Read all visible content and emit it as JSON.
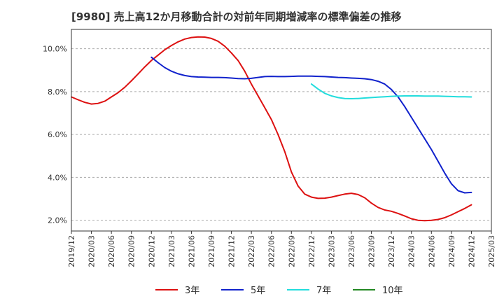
{
  "chart_data": {
    "type": "line",
    "title": "[9980]  売上高12か月移動合計の対前年同期増減率の標準偏差の推移",
    "xlabel": "",
    "ylabel": "",
    "x_ticks": [
      "2019/12",
      "2020/03",
      "2020/06",
      "2020/09",
      "2020/12",
      "2021/03",
      "2021/06",
      "2021/09",
      "2021/12",
      "2022/03",
      "2022/06",
      "2022/09",
      "2022/12",
      "2023/03",
      "2023/06",
      "2023/09",
      "2023/12",
      "2024/03",
      "2024/06",
      "2024/09",
      "2024/12",
      "2025/03"
    ],
    "y_ticks": [
      2.0,
      4.0,
      6.0,
      8.0,
      10.0
    ],
    "y_tick_labels": [
      "2.0%",
      "4.0%",
      "6.0%",
      "8.0%",
      "10.0%"
    ],
    "ylim": [
      1.5,
      10.9
    ],
    "grid": "horizontal dashed",
    "legend_position": "bottom",
    "series": [
      {
        "name": "3年",
        "color": "#dd1111",
        "x": [
          "2019/12",
          "2020/01",
          "2020/02",
          "2020/03",
          "2020/04",
          "2020/05",
          "2020/06",
          "2020/07",
          "2020/08",
          "2020/09",
          "2020/10",
          "2020/11",
          "2020/12",
          "2021/01",
          "2021/02",
          "2021/03",
          "2021/04",
          "2021/05",
          "2021/06",
          "2021/07",
          "2021/08",
          "2021/09",
          "2021/10",
          "2021/11",
          "2021/12",
          "2022/01",
          "2022/02",
          "2022/03",
          "2022/04",
          "2022/05",
          "2022/06",
          "2022/07",
          "2022/08",
          "2022/09",
          "2022/10",
          "2022/11",
          "2022/12",
          "2023/01",
          "2023/02",
          "2023/03",
          "2023/04",
          "2023/05",
          "2023/06",
          "2023/07",
          "2023/08",
          "2023/09",
          "2023/10",
          "2023/11",
          "2023/12",
          "2024/01",
          "2024/02",
          "2024/03",
          "2024/04",
          "2024/05",
          "2024/06",
          "2024/07",
          "2024/08",
          "2024/09",
          "2024/10",
          "2024/11",
          "2024/12"
        ],
        "values": [
          7.75,
          7.62,
          7.5,
          7.42,
          7.45,
          7.55,
          7.75,
          7.95,
          8.2,
          8.5,
          8.82,
          9.15,
          9.45,
          9.7,
          9.95,
          10.15,
          10.32,
          10.45,
          10.52,
          10.55,
          10.54,
          10.48,
          10.35,
          10.12,
          9.8,
          9.45,
          8.95,
          8.35,
          7.8,
          7.25,
          6.7,
          6.0,
          5.2,
          4.25,
          3.6,
          3.22,
          3.08,
          3.02,
          3.03,
          3.08,
          3.15,
          3.22,
          3.26,
          3.2,
          3.05,
          2.8,
          2.6,
          2.48,
          2.42,
          2.32,
          2.2,
          2.07,
          2.0,
          1.98,
          2.0,
          2.04,
          2.12,
          2.25,
          2.4,
          2.55,
          2.72
        ]
      },
      {
        "name": "5年",
        "color": "#1122cc",
        "x": [
          "2020/12",
          "2021/01",
          "2021/02",
          "2021/03",
          "2021/04",
          "2021/05",
          "2021/06",
          "2021/07",
          "2021/08",
          "2021/09",
          "2021/10",
          "2021/11",
          "2021/12",
          "2022/01",
          "2022/02",
          "2022/03",
          "2022/04",
          "2022/05",
          "2022/06",
          "2022/07",
          "2022/08",
          "2022/09",
          "2022/10",
          "2022/11",
          "2022/12",
          "2023/01",
          "2023/02",
          "2023/03",
          "2023/04",
          "2023/05",
          "2023/06",
          "2023/07",
          "2023/08",
          "2023/09",
          "2023/10",
          "2023/11",
          "2023/12",
          "2024/01",
          "2024/02",
          "2024/03",
          "2024/04",
          "2024/05",
          "2024/06",
          "2024/07",
          "2024/08",
          "2024/09",
          "2024/10",
          "2024/11",
          "2024/12"
        ],
        "values": [
          9.6,
          9.35,
          9.12,
          8.95,
          8.83,
          8.75,
          8.7,
          8.68,
          8.67,
          8.66,
          8.66,
          8.65,
          8.63,
          8.61,
          8.6,
          8.62,
          8.66,
          8.7,
          8.71,
          8.7,
          8.7,
          8.71,
          8.72,
          8.72,
          8.72,
          8.71,
          8.7,
          8.68,
          8.66,
          8.65,
          8.63,
          8.62,
          8.6,
          8.56,
          8.48,
          8.35,
          8.1,
          7.75,
          7.3,
          6.8,
          6.3,
          5.8,
          5.3,
          4.75,
          4.2,
          3.7,
          3.38,
          3.28,
          3.3
        ]
      },
      {
        "name": "7年",
        "color": "#22dddd",
        "x": [
          "2022/12",
          "2023/01",
          "2023/02",
          "2023/03",
          "2023/04",
          "2023/05",
          "2023/06",
          "2023/07",
          "2023/08",
          "2023/09",
          "2023/10",
          "2023/11",
          "2023/12",
          "2024/01",
          "2024/02",
          "2024/03",
          "2024/04",
          "2024/05",
          "2024/06",
          "2024/07",
          "2024/08",
          "2024/09",
          "2024/10",
          "2024/11",
          "2024/12"
        ],
        "values": [
          8.35,
          8.12,
          7.92,
          7.8,
          7.72,
          7.68,
          7.67,
          7.68,
          7.7,
          7.72,
          7.74,
          7.76,
          7.78,
          7.79,
          7.8,
          7.8,
          7.8,
          7.79,
          7.79,
          7.79,
          7.78,
          7.77,
          7.76,
          7.76,
          7.75
        ]
      },
      {
        "name": "10年",
        "color": "#228822",
        "x": [],
        "values": []
      }
    ]
  }
}
